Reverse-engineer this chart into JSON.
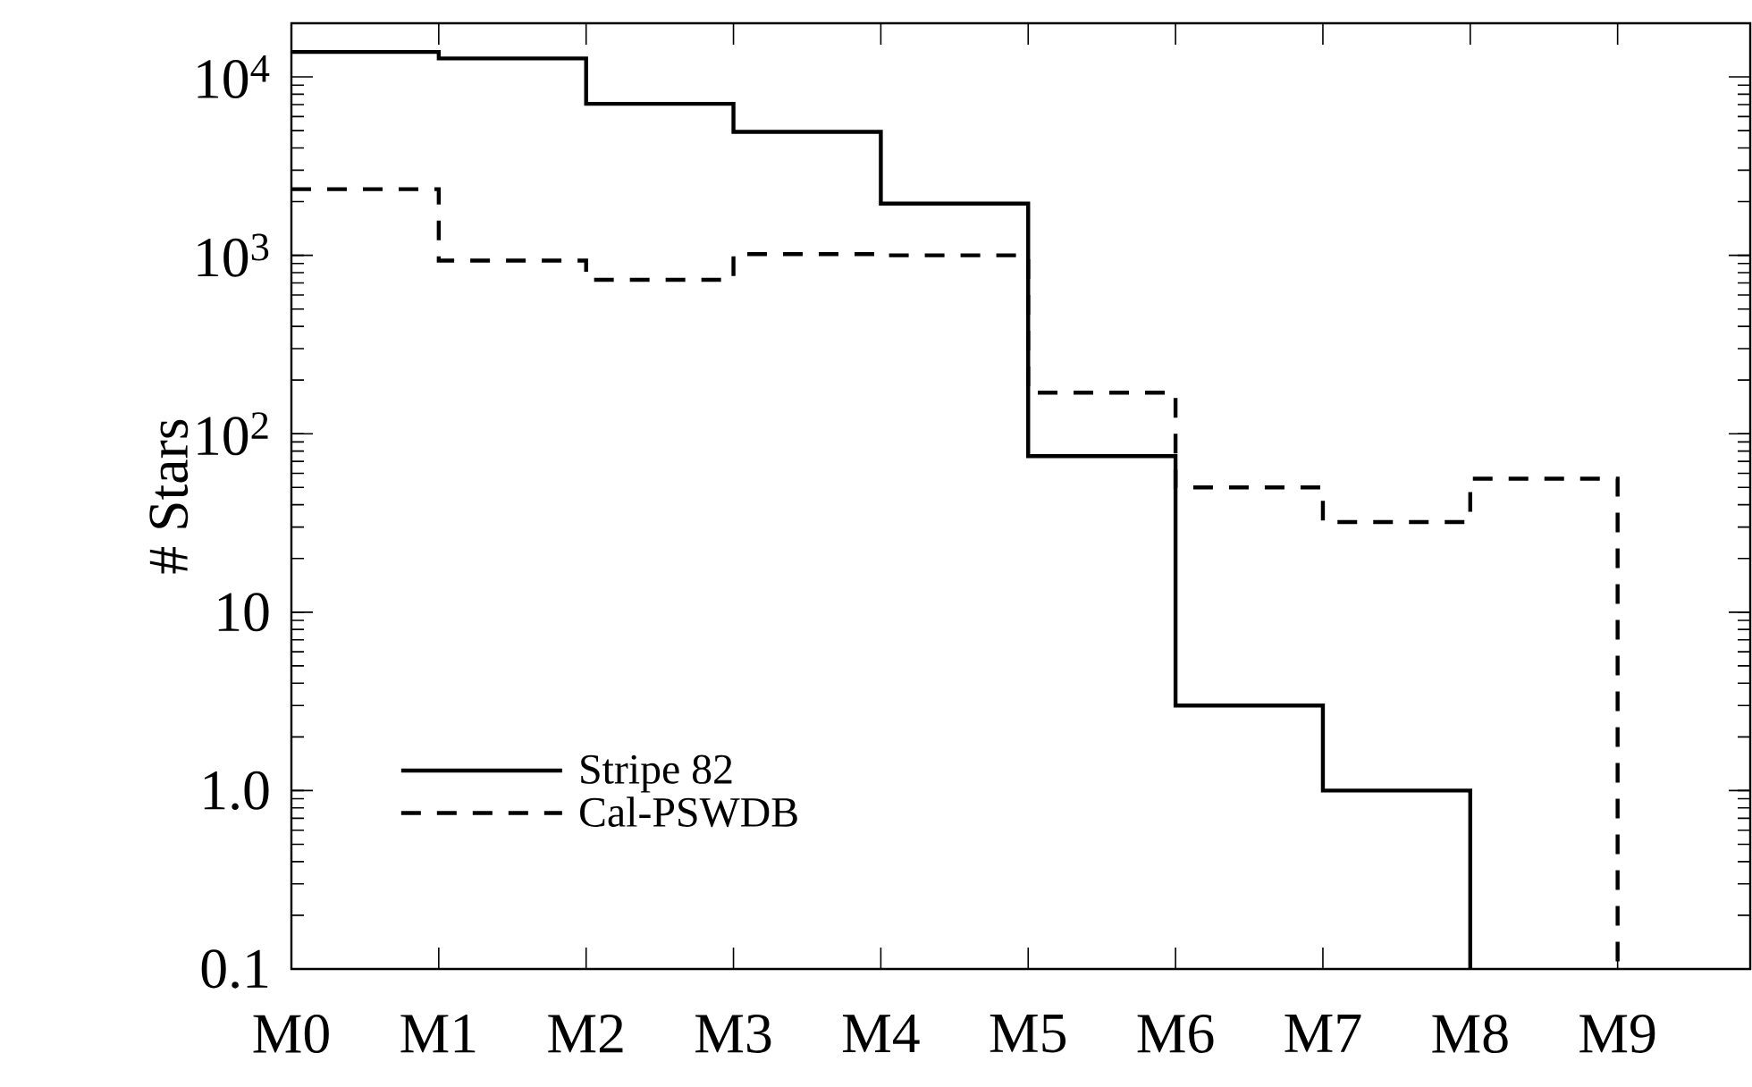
{
  "chart_data": {
    "type": "step",
    "ylabel": "# Stars",
    "log": "y",
    "legend": "bottom left",
    "marker": "none",
    "categories": [
      "M0",
      "M1",
      "M2",
      "M3",
      "M4",
      "M5",
      "M6",
      "M7",
      "M8",
      "M9"
    ],
    "ylim": [
      0.1,
      20000
    ],
    "yticks": [
      {
        "value": 0.1,
        "label": "0.1"
      },
      {
        "value": 1,
        "label": "1.0"
      },
      {
        "value": 10,
        "label": "10"
      },
      {
        "value": 100,
        "label": "10$^{2}$"
      },
      {
        "value": 1000,
        "label": "10$^{3}$"
      },
      {
        "value": 10000,
        "label": "10$^{4}$"
      }
    ],
    "series": [
      {
        "name": "Stripe 82",
        "color": "#000000",
        "line_style": "solid",
        "values": [
          13800,
          12700,
          7070,
          4920,
          1950,
          75,
          3.0,
          1.0,
          0.1,
          null
        ]
      },
      {
        "name": "Cal-PSWDB",
        "color": "#000000",
        "line_style": "dashed",
        "values": [
          2350,
          935,
          730,
          1016,
          1000,
          170,
          50,
          32,
          56,
          0.1
        ]
      }
    ]
  }
}
